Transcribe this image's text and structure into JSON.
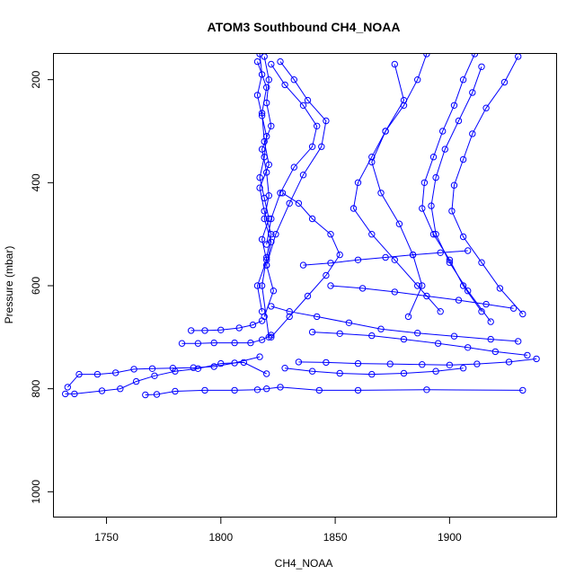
{
  "chart_data": {
    "type": "line",
    "title": "ATOM3 Southbound CH4_NOAA",
    "xlabel": "CH4_NOAA",
    "ylabel": "Pressure (mbar)",
    "xlim": [
      1727,
      1947
    ],
    "ylim": [
      1050,
      150
    ],
    "y_reversed": true,
    "x_ticks": [
      1750,
      1800,
      1850,
      1900
    ],
    "y_ticks": [
      200,
      400,
      600,
      800,
      1000
    ],
    "series_color": "#0000ff",
    "marker": "open-circle",
    "grid": false,
    "profile_points_note_values": [
      {
        "name": "",
        "x": [
          1732,
          1736,
          1748,
          1756,
          1763,
          1771,
          1780,
          1790,
          1800,
          1810,
          1820
        ],
        "y": [
          810,
          810,
          804,
          800,
          786,
          775,
          766,
          761,
          751,
          749,
          771
        ]
      },
      {
        "name": "",
        "x": [
          1733,
          1738,
          1746,
          1754,
          1762,
          1770,
          1779,
          1788,
          1797,
          1806,
          1817
        ],
        "y": [
          797,
          772,
          772,
          769,
          762,
          761,
          760,
          759,
          757,
          750,
          738
        ]
      },
      {
        "name": "",
        "x": [
          1767,
          1772,
          1780,
          1793,
          1806,
          1816,
          1820,
          1826,
          1843,
          1860,
          1890,
          1932
        ],
        "y": [
          812,
          811,
          805,
          803,
          803,
          802,
          800,
          797,
          803,
          803,
          802,
          803
        ]
      },
      {
        "name": "",
        "x": [
          1783,
          1790,
          1797,
          1806,
          1813,
          1818,
          1822
        ],
        "y": [
          712,
          712,
          711,
          711,
          711,
          705,
          696
        ]
      },
      {
        "name": "",
        "x": [
          1787,
          1793,
          1800,
          1808,
          1814,
          1818
        ],
        "y": [
          687,
          687,
          686,
          682,
          676,
          668
        ]
      },
      {
        "name": "",
        "x": [
          1817,
          1818,
          1816,
          1818,
          1820,
          1819,
          1817,
          1819,
          1821,
          1818,
          1820,
          1816,
          1818
        ],
        "y": [
          150,
          190,
          230,
          270,
          310,
          350,
          390,
          430,
          470,
          510,
          550,
          600,
          650
        ]
      },
      {
        "name": "",
        "x": [
          1819,
          1821,
          1820,
          1822,
          1818,
          1820,
          1821,
          1819,
          1822,
          1820,
          1823,
          1819
        ],
        "y": [
          155,
          200,
          245,
          290,
          335,
          380,
          425,
          470,
          515,
          560,
          610,
          660
        ]
      },
      {
        "name": "",
        "x": [
          1816,
          1820,
          1818,
          1819,
          1821,
          1817,
          1819,
          1822,
          1820,
          1818,
          1821
        ],
        "y": [
          165,
          215,
          265,
          320,
          365,
          410,
          455,
          500,
          545,
          600,
          700
        ]
      },
      {
        "name": "",
        "x": [
          1822,
          1828,
          1836,
          1842,
          1840,
          1832,
          1826,
          1822,
          1820
        ],
        "y": [
          170,
          210,
          250,
          290,
          330,
          370,
          420,
          470,
          520
        ]
      },
      {
        "name": "",
        "x": [
          1826,
          1832,
          1838,
          1846,
          1844,
          1836,
          1830,
          1824,
          1820
        ],
        "y": [
          165,
          200,
          240,
          280,
          330,
          385,
          440,
          500,
          560
        ]
      },
      {
        "name": "",
        "x": [
          1827,
          1834,
          1840,
          1848,
          1852,
          1846,
          1838,
          1830,
          1822
        ],
        "y": [
          420,
          440,
          470,
          500,
          540,
          580,
          620,
          660,
          700
        ]
      },
      {
        "name": "",
        "x": [
          1890,
          1886,
          1880,
          1872,
          1866,
          1860,
          1858,
          1866,
          1876,
          1886,
          1896
        ],
        "y": [
          150,
          200,
          250,
          300,
          350,
          400,
          450,
          500,
          550,
          600,
          650
        ]
      },
      {
        "name": "",
        "x": [
          1911,
          1906,
          1902,
          1897,
          1893,
          1889,
          1888,
          1893,
          1900,
          1906,
          1914
        ],
        "y": [
          150,
          200,
          250,
          300,
          350,
          400,
          450,
          500,
          550,
          600,
          650
        ]
      },
      {
        "name": "",
        "x": [
          1930,
          1924,
          1916,
          1910,
          1906,
          1902,
          1901,
          1906,
          1914,
          1922,
          1932
        ],
        "y": [
          155,
          205,
          255,
          305,
          355,
          405,
          455,
          505,
          555,
          605,
          655
        ]
      },
      {
        "name": "",
        "x": [
          1914,
          1910,
          1904,
          1898,
          1894,
          1892,
          1894,
          1900,
          1908,
          1918
        ],
        "y": [
          175,
          225,
          280,
          335,
          390,
          445,
          500,
          555,
          610,
          670
        ]
      },
      {
        "name": "",
        "x": [
          1876,
          1880,
          1872,
          1866,
          1870,
          1878,
          1884,
          1888,
          1882
        ],
        "y": [
          170,
          240,
          300,
          360,
          420,
          480,
          540,
          600,
          660
        ]
      },
      {
        "name": "",
        "x": [
          1840,
          1852,
          1866,
          1880,
          1895,
          1908,
          1920,
          1934
        ],
        "y": [
          690,
          693,
          697,
          704,
          712,
          720,
          728,
          735
        ]
      },
      {
        "name": "",
        "x": [
          1834,
          1846,
          1860,
          1874,
          1888,
          1900,
          1912,
          1926,
          1938
        ],
        "y": [
          748,
          749,
          751,
          752,
          753,
          754,
          752,
          748,
          742
        ]
      },
      {
        "name": "",
        "x": [
          1822,
          1830,
          1842,
          1856,
          1870,
          1886,
          1902,
          1918,
          1930
        ],
        "y": [
          640,
          650,
          660,
          672,
          684,
          692,
          698,
          704,
          708
        ]
      },
      {
        "name": "",
        "x": [
          1848,
          1862,
          1876,
          1890,
          1904,
          1916,
          1928
        ],
        "y": [
          600,
          605,
          612,
          620,
          628,
          636,
          644
        ]
      },
      {
        "name": "",
        "x": [
          1836,
          1848,
          1860,
          1872,
          1884,
          1896,
          1908
        ],
        "y": [
          560,
          556,
          550,
          545,
          540,
          536,
          532
        ]
      },
      {
        "name": "",
        "x": [
          1828,
          1840,
          1852,
          1866,
          1880,
          1894,
          1906
        ],
        "y": [
          760,
          766,
          770,
          772,
          770,
          766,
          760
        ]
      }
    ]
  }
}
